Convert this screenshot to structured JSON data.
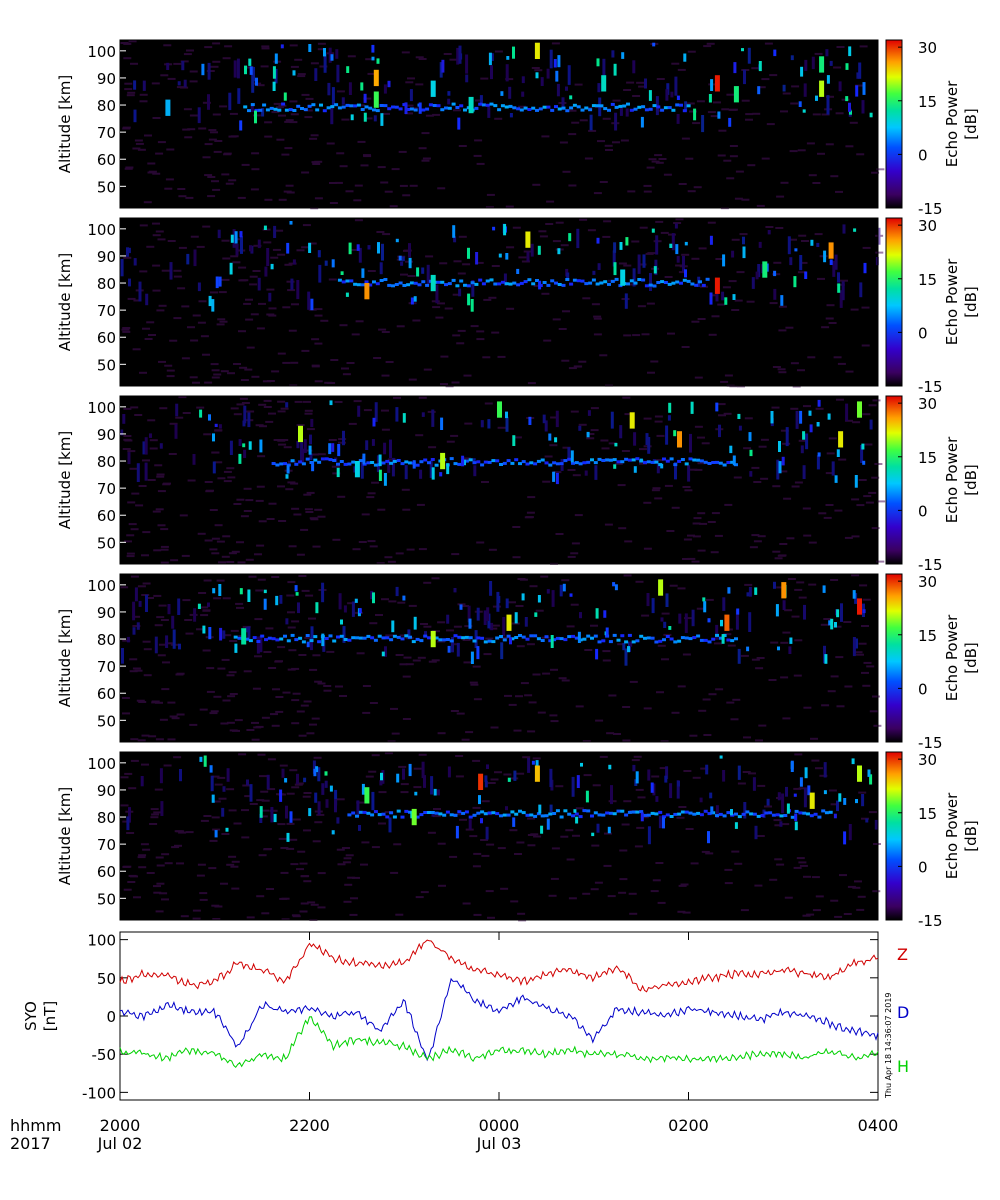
{
  "chart_data": [
    {
      "type": "heatmap",
      "panel": 1,
      "ylabel": "Altitude [km]",
      "yticks": [
        50,
        60,
        70,
        80,
        90,
        100
      ],
      "ylim": [
        42,
        104
      ],
      "colorbar": {
        "label": "Echo Power",
        "unit": "[dB]",
        "ticks": [
          30,
          15,
          0,
          -15
        ],
        "range": [
          -15,
          32
        ]
      },
      "echo_layer": {
        "altitude_km": 79,
        "from_hour": 1.3,
        "to_hour": 6.0
      },
      "strong_echoes": [
        {
          "hour": 0.5,
          "alt": 79,
          "level": 5
        },
        {
          "hour": 2.7,
          "alt": 82,
          "level": 16
        },
        {
          "hour": 2.7,
          "alt": 90,
          "level": 25
        },
        {
          "hour": 3.3,
          "alt": 86,
          "level": 8
        },
        {
          "hour": 3.7,
          "alt": 80,
          "level": 10
        },
        {
          "hour": 4.4,
          "alt": 100,
          "level": 22
        },
        {
          "hour": 5.1,
          "alt": 88,
          "level": 10
        },
        {
          "hour": 6.3,
          "alt": 88,
          "level": 31
        },
        {
          "hour": 6.5,
          "alt": 84,
          "level": 14
        },
        {
          "hour": 7.4,
          "alt": 86,
          "level": 20
        },
        {
          "hour": 7.4,
          "alt": 95,
          "level": 14
        }
      ]
    },
    {
      "type": "heatmap",
      "panel": 2,
      "ylabel": "Altitude [km]",
      "yticks": [
        50,
        60,
        70,
        80,
        90,
        100
      ],
      "ylim": [
        42,
        104
      ],
      "colorbar": {
        "label": "Echo Power",
        "unit": "[dB]",
        "ticks": [
          30,
          15,
          0,
          -15
        ],
        "range": [
          -15,
          32
        ]
      },
      "echo_layer": {
        "altitude_km": 80,
        "from_hour": 2.3,
        "to_hour": 6.2
      },
      "strong_echoes": [
        {
          "hour": 2.6,
          "alt": 77,
          "level": 26
        },
        {
          "hour": 3.3,
          "alt": 80,
          "level": 10
        },
        {
          "hour": 4.3,
          "alt": 96,
          "level": 22
        },
        {
          "hour": 5.3,
          "alt": 82,
          "level": 8
        },
        {
          "hour": 6.3,
          "alt": 79,
          "level": 31
        },
        {
          "hour": 6.8,
          "alt": 85,
          "level": 14
        },
        {
          "hour": 7.5,
          "alt": 92,
          "level": 26
        }
      ]
    },
    {
      "type": "heatmap",
      "panel": 3,
      "ylabel": "Altitude [km]",
      "yticks": [
        50,
        60,
        70,
        80,
        90,
        100
      ],
      "ylim": [
        42,
        104
      ],
      "colorbar": {
        "label": "Echo Power",
        "unit": "[dB]",
        "ticks": [
          30,
          15,
          0,
          -15
        ],
        "range": [
          -15,
          32
        ]
      },
      "echo_layer": {
        "altitude_km": 79.5,
        "from_hour": 1.6,
        "to_hour": 6.5
      },
      "strong_echoes": [
        {
          "hour": 1.9,
          "alt": 90,
          "level": 20
        },
        {
          "hour": 2.5,
          "alt": 77,
          "level": 8
        },
        {
          "hour": 3.4,
          "alt": 80,
          "level": 20
        },
        {
          "hour": 4.0,
          "alt": 99,
          "level": 16
        },
        {
          "hour": 5.4,
          "alt": 95,
          "level": 22
        },
        {
          "hour": 5.9,
          "alt": 88,
          "level": 26
        },
        {
          "hour": 7.6,
          "alt": 88,
          "level": 22
        },
        {
          "hour": 7.8,
          "alt": 99,
          "level": 18
        }
      ]
    },
    {
      "type": "heatmap",
      "panel": 4,
      "ylabel": "Altitude [km]",
      "yticks": [
        50,
        60,
        70,
        80,
        90,
        100
      ],
      "ylim": [
        42,
        104
      ],
      "colorbar": {
        "label": "Echo Power",
        "unit": "[dB]",
        "ticks": [
          30,
          15,
          0,
          -15
        ],
        "range": [
          -15,
          32
        ]
      },
      "echo_layer": {
        "altitude_km": 80,
        "from_hour": 1.2,
        "to_hour": 6.5
      },
      "strong_echoes": [
        {
          "hour": 1.3,
          "alt": 81,
          "level": 12
        },
        {
          "hour": 3.3,
          "alt": 80,
          "level": 20
        },
        {
          "hour": 4.1,
          "alt": 86,
          "level": 22
        },
        {
          "hour": 5.7,
          "alt": 99,
          "level": 20
        },
        {
          "hour": 6.4,
          "alt": 86,
          "level": 28
        },
        {
          "hour": 7.0,
          "alt": 98,
          "level": 26
        },
        {
          "hour": 7.8,
          "alt": 92,
          "level": 31
        }
      ]
    },
    {
      "type": "heatmap",
      "panel": 5,
      "ylabel": "Altitude [km]",
      "yticks": [
        50,
        60,
        70,
        80,
        90,
        100
      ],
      "ylim": [
        42,
        104
      ],
      "colorbar": {
        "label": "Echo Power",
        "unit": "[dB]",
        "ticks": [
          30,
          15,
          0,
          -15
        ],
        "range": [
          -15,
          32
        ]
      },
      "echo_layer": {
        "altitude_km": 81,
        "from_hour": 2.4,
        "to_hour": 7.5
      },
      "strong_echoes": [
        {
          "hour": 2.6,
          "alt": 88,
          "level": 16
        },
        {
          "hour": 3.1,
          "alt": 80,
          "level": 18
        },
        {
          "hour": 3.8,
          "alt": 93,
          "level": 30
        },
        {
          "hour": 4.4,
          "alt": 96,
          "level": 24
        },
        {
          "hour": 7.3,
          "alt": 86,
          "level": 22
        },
        {
          "hour": 7.8,
          "alt": 96,
          "level": 20
        }
      ]
    },
    {
      "type": "line",
      "ylabel": "SYO",
      "ylabel2": "[nT]",
      "ylim": [
        -110,
        110
      ],
      "yticks": [
        100,
        50,
        0,
        -50,
        -100
      ],
      "x_hours_since": "2017-07-02 20:00",
      "x": [
        0,
        0.25,
        0.5,
        0.75,
        1.0,
        1.25,
        1.5,
        1.75,
        2.0,
        2.25,
        2.5,
        2.75,
        3.0,
        3.25,
        3.5,
        3.75,
        4.0,
        4.25,
        4.5,
        4.75,
        5.0,
        5.25,
        5.5,
        5.75,
        6.0,
        6.25,
        6.5,
        6.75,
        7.0,
        7.25,
        7.5,
        7.75,
        8.0
      ],
      "series": [
        {
          "name": "Z",
          "color": "#d00000",
          "values": [
            45,
            55,
            52,
            40,
            45,
            70,
            60,
            45,
            95,
            75,
            70,
            65,
            70,
            100,
            75,
            60,
            55,
            45,
            55,
            60,
            50,
            65,
            35,
            40,
            45,
            50,
            55,
            55,
            60,
            55,
            50,
            70,
            75
          ]
        },
        {
          "name": "D",
          "color": "#0000c8",
          "values": [
            5,
            0,
            15,
            5,
            5,
            -40,
            15,
            5,
            10,
            0,
            5,
            -20,
            20,
            -60,
            50,
            20,
            5,
            25,
            10,
            0,
            -30,
            10,
            5,
            0,
            10,
            5,
            0,
            -5,
            5,
            0,
            -10,
            -20,
            -25
          ]
        },
        {
          "name": "H",
          "color": "#00d000",
          "values": [
            -45,
            -50,
            -55,
            -45,
            -50,
            -65,
            -50,
            -55,
            0,
            -40,
            -30,
            -35,
            -40,
            -55,
            -45,
            -55,
            -45,
            -45,
            -50,
            -45,
            -50,
            -50,
            -55,
            -55,
            -55,
            -55,
            -55,
            -50,
            -50,
            -55,
            -45,
            -55,
            -50
          ]
        }
      ]
    }
  ],
  "xaxis": {
    "label_time": "hhmm",
    "label_year": "2017",
    "tick_hours": [
      0,
      2,
      4,
      6,
      8
    ],
    "ticks": [
      "2000",
      "2200",
      "0000",
      "0200",
      "0400"
    ],
    "dates": [
      {
        "hour": 0,
        "text": "Jul 02"
      },
      {
        "hour": 4,
        "text": "Jul 03"
      }
    ]
  },
  "timestamp": "Thu Apr 18 14:36:07 2019",
  "colors": {
    "background_panel": "#000000",
    "noise": "#3a0a4a",
    "line_z": "#d00000",
    "line_d": "#0000c8",
    "line_h": "#00d000"
  }
}
